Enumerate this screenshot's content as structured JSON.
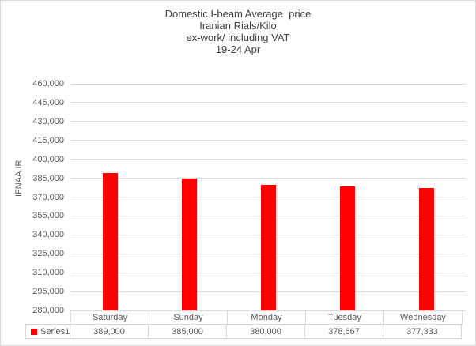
{
  "chart_data": {
    "type": "bar",
    "title_lines": [
      "Domestic I-beam Average  price",
      "Iranian Rials/Kilo",
      "ex-work/ including VAT",
      "19-24 Apr"
    ],
    "ylabel": "IFNAA.IR",
    "xlabel": "",
    "categories": [
      "Saturday",
      "Sunday",
      "Monday",
      "Tuesday",
      "Wednesday"
    ],
    "series": [
      {
        "name": "Series1",
        "values": [
          389000,
          385000,
          380000,
          378667,
          377333
        ]
      }
    ],
    "value_labels": [
      "389,000",
      "385,000",
      "380,000",
      "378,667",
      "377,333"
    ],
    "ylim": [
      280000,
      460000
    ],
    "ytick_step": 15000,
    "ytick_labels": [
      "280,000",
      "295,000",
      "310,000",
      "325,000",
      "340,000",
      "355,000",
      "370,000",
      "385,000",
      "400,000",
      "415,000",
      "430,000",
      "445,000",
      "460,000"
    ],
    "grid": true,
    "legend_position": "bottom-table",
    "colors": {
      "bar": "#ff0000",
      "gridline": "#d9d9d9",
      "border": "#d9d9d9",
      "title_text": "#404040",
      "axis_text": "#595959"
    }
  }
}
